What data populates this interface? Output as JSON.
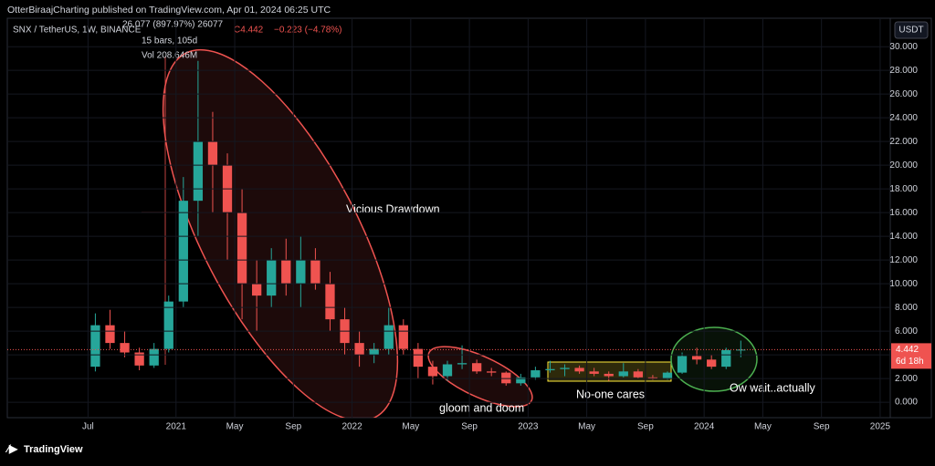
{
  "header": {
    "publisher": "OtterBiraajCharting published on TradingView.com, Apr 01, 2024 06:25 UTC",
    "currency": "USDT",
    "brand": "TradingView"
  },
  "chart_data": {
    "type": "candlestick",
    "title": "SNX / TetherUS, 1W, BINANCE",
    "close_label": "C4.442",
    "change_label": "−0.223 (−4.78%)",
    "measure": [
      "26.077 (897.97%) 26077",
      "15 bars, 105d",
      "Vol 208.646M"
    ],
    "annotations": [
      "Vicious Drawdown",
      "gloom and doom",
      "No-one cares",
      "Ow wait..actually"
    ],
    "last_price": 4.442,
    "countdown": "6d 18h",
    "up_color": "#26a69a",
    "down_color": "#ef5350",
    "x": [
      "2020-07",
      "2020-08",
      "2020-09",
      "2020-10",
      "2020-11",
      "2020-12",
      "2021-01",
      "2021-02",
      "2021-03",
      "2021-04",
      "2021-05",
      "2021-06",
      "2021-07",
      "2021-08",
      "2021-09",
      "2021-10",
      "2021-11",
      "2021-12",
      "2022-01",
      "2022-02",
      "2022-03",
      "2022-04",
      "2022-05",
      "2022-06",
      "2022-07",
      "2022-08",
      "2022-09",
      "2022-10",
      "2022-11",
      "2022-12",
      "2023-01",
      "2023-02",
      "2023-03",
      "2023-04",
      "2023-05",
      "2023-06",
      "2023-07",
      "2023-08",
      "2023-09",
      "2023-10",
      "2023-11",
      "2023-12",
      "2024-01",
      "2024-02",
      "2024-03"
    ],
    "open": [
      3,
      6.5,
      5,
      4.2,
      3.1,
      4.5,
      8.5,
      17,
      22,
      20,
      16,
      10,
      9,
      12,
      10,
      12,
      10,
      7,
      5,
      4,
      4.5,
      6.5,
      4.5,
      3,
      2.2,
      3.2,
      3.3,
      2.6,
      2.5,
      1.6,
      2.1,
      2.7,
      2.8,
      2.9,
      2.6,
      2.4,
      2.2,
      2.6,
      2.1,
      2.0,
      2.5,
      3.9,
      3.6,
      3.0,
      4.4
    ],
    "high": [
      7.5,
      7.8,
      6,
      4.6,
      5,
      9,
      19,
      28.8,
      24.5,
      21,
      18,
      12,
      13,
      13.8,
      14,
      13,
      11,
      8,
      6,
      5,
      8,
      7,
      5,
      3.5,
      3.5,
      4.8,
      3.6,
      2.9,
      2.6,
      2.4,
      3,
      3.5,
      3.2,
      3.1,
      2.9,
      2.6,
      3.3,
      2.8,
      2.3,
      2.6,
      4.2,
      4.6,
      4.0,
      4.6,
      5.2
    ],
    "low": [
      2.6,
      4.5,
      3.8,
      2.7,
      2.9,
      4.2,
      8,
      14,
      16,
      12,
      7,
      6,
      8,
      9,
      8,
      9.5,
      6,
      4,
      3,
      3.3,
      4,
      4,
      2,
      1.5,
      1.8,
      2.8,
      2.4,
      2.2,
      1.4,
      1.4,
      1.9,
      2.5,
      2.2,
      2.4,
      2.2,
      1.8,
      2.1,
      2,
      1.9,
      1.9,
      2.4,
      3.2,
      2.8,
      2.8,
      3.8
    ],
    "close": [
      6.5,
      5,
      4.2,
      3.1,
      4.5,
      8.5,
      17,
      22,
      20,
      16,
      10,
      9,
      12,
      10,
      12,
      10,
      7,
      5,
      4,
      4.5,
      6.5,
      4.5,
      3,
      2.2,
      3.2,
      3.3,
      2.6,
      2.5,
      1.6,
      2.1,
      2.7,
      2.8,
      2.9,
      2.6,
      2.4,
      2.2,
      2.6,
      2.1,
      2.0,
      2.5,
      3.9,
      3.6,
      3.0,
      4.4,
      4.442
    ],
    "xlim": [
      "2020-01",
      "2025-02"
    ],
    "xticks": [
      {
        "value": "2020-07",
        "label": "Jul"
      },
      {
        "value": "2021-01",
        "label": "2021"
      },
      {
        "value": "2021-05",
        "label": "May"
      },
      {
        "value": "2021-09",
        "label": "Sep"
      },
      {
        "value": "2022-01",
        "label": "2022"
      },
      {
        "value": "2022-05",
        "label": "May"
      },
      {
        "value": "2022-09",
        "label": "Sep"
      },
      {
        "value": "2023-01",
        "label": "2023"
      },
      {
        "value": "2023-05",
        "label": "May"
      },
      {
        "value": "2023-09",
        "label": "Sep"
      },
      {
        "value": "2024-01",
        "label": "2024"
      },
      {
        "value": "2024-05",
        "label": "May"
      },
      {
        "value": "2024-09",
        "label": "Sep"
      },
      {
        "value": "2025-01",
        "label": "2025"
      }
    ],
    "ylim": [
      -1.3,
      32.4
    ],
    "yticks": [
      {
        "value": 0,
        "label": "0.000"
      },
      {
        "value": 2,
        "label": "2.000"
      },
      {
        "value": 4,
        "label": "4.000"
      },
      {
        "value": 6,
        "label": "6.000"
      },
      {
        "value": 8,
        "label": "8.000"
      },
      {
        "value": 10,
        "label": "10.000"
      },
      {
        "value": 12,
        "label": "12.000"
      },
      {
        "value": 14,
        "label": "14.000"
      },
      {
        "value": 16,
        "label": "16.000"
      },
      {
        "value": 18,
        "label": "18.000"
      },
      {
        "value": 20,
        "label": "20.000"
      },
      {
        "value": 22,
        "label": "22.000"
      },
      {
        "value": 24,
        "label": "24.000"
      },
      {
        "value": 26,
        "label": "26.000"
      },
      {
        "value": 28,
        "label": "28.000"
      },
      {
        "value": 30,
        "label": "30.000"
      }
    ]
  }
}
